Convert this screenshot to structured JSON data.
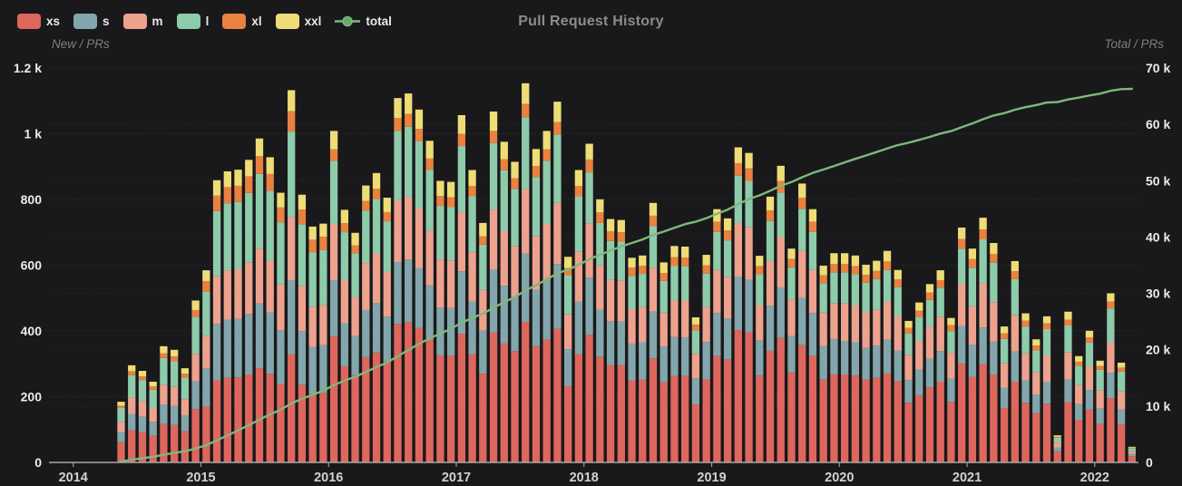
{
  "header": {
    "title": "Pull Request History"
  },
  "left_axis": {
    "name": "New / PRs",
    "min": 0,
    "max": 1200,
    "tick_values": [
      1200,
      1000,
      800,
      600,
      400,
      200,
      0
    ],
    "tick_labels": [
      "1.2 k",
      "1 k",
      "800",
      "600",
      "400",
      "200",
      "0"
    ]
  },
  "right_axis": {
    "name": "Total / PRs",
    "min": 0,
    "max": 70000,
    "tick_values": [
      70000,
      60000,
      50000,
      40000,
      30000,
      20000,
      10000,
      0
    ],
    "tick_labels": [
      "70 k",
      "60 k",
      "50 k",
      "40 k",
      "30 k",
      "20 k",
      "10 k",
      "0"
    ]
  },
  "x_axis": {
    "years": [
      "2014",
      "2015",
      "2016",
      "2017",
      "2018",
      "2019",
      "2020",
      "2021",
      "2022"
    ]
  },
  "legend": {
    "items": [
      {
        "label": "xs",
        "color": "#dd675d",
        "type": "swatch"
      },
      {
        "label": "s",
        "color": "#82a6ac",
        "type": "swatch"
      },
      {
        "label": "m",
        "color": "#eda28e",
        "type": "swatch"
      },
      {
        "label": "l",
        "color": "#8ecbab",
        "type": "swatch"
      },
      {
        "label": "xl",
        "color": "#e9813f",
        "type": "swatch"
      },
      {
        "label": "xxl",
        "color": "#eedc76",
        "type": "swatch"
      },
      {
        "label": "total",
        "color": "#7eb87c",
        "type": "line"
      }
    ]
  },
  "chart_data": {
    "type": "bar",
    "stacked": true,
    "title": "Pull Request History",
    "x_interval": "month",
    "grid": "dotted-horizontal-both-axes",
    "legend_position": "top-left",
    "left_ylim": [
      0,
      1200
    ],
    "right_ylim": [
      0,
      70000
    ],
    "categories": [
      "2014-05",
      "2014-06",
      "2014-07",
      "2014-08",
      "2014-09",
      "2014-10",
      "2014-11",
      "2014-12",
      "2015-01",
      "2015-02",
      "2015-03",
      "2015-04",
      "2015-05",
      "2015-06",
      "2015-07",
      "2015-08",
      "2015-09",
      "2015-10",
      "2015-11",
      "2015-12",
      "2016-01",
      "2016-02",
      "2016-03",
      "2016-04",
      "2016-05",
      "2016-06",
      "2016-07",
      "2016-08",
      "2016-09",
      "2016-10",
      "2016-11",
      "2016-12",
      "2017-01",
      "2017-02",
      "2017-03",
      "2017-04",
      "2017-05",
      "2017-06",
      "2017-07",
      "2017-08",
      "2017-09",
      "2017-10",
      "2017-11",
      "2017-12",
      "2018-01",
      "2018-02",
      "2018-03",
      "2018-04",
      "2018-05",
      "2018-06",
      "2018-07",
      "2018-08",
      "2018-09",
      "2018-10",
      "2018-11",
      "2018-12",
      "2019-01",
      "2019-02",
      "2019-03",
      "2019-04",
      "2019-05",
      "2019-06",
      "2019-07",
      "2019-08",
      "2019-09",
      "2019-10",
      "2019-11",
      "2019-12",
      "2020-01",
      "2020-02",
      "2020-03",
      "2020-04",
      "2020-05",
      "2020-06",
      "2020-07",
      "2020-08",
      "2020-09",
      "2020-10",
      "2020-11",
      "2020-12",
      "2021-01",
      "2021-02",
      "2021-03",
      "2021-04",
      "2021-05",
      "2021-06",
      "2021-07",
      "2021-08",
      "2021-09",
      "2021-10",
      "2021-11",
      "2021-12",
      "2022-01",
      "2022-02",
      "2022-03",
      "2022-04"
    ],
    "series": [
      {
        "name": "xs",
        "color": "#dd675d",
        "values": [
          61,
          97,
          92,
          81,
          116,
          113,
          94,
          162,
          169,
          249,
          257,
          258,
          267,
          286,
          269,
          238,
          328,
          236,
          208,
          211,
          383,
          292,
          265,
          320,
          334,
          306,
          421,
          426,
          408,
          372,
          325,
          324,
          391,
          329,
          269,
          395,
          361,
          338,
          427,
          353,
          373,
          406,
          231,
          329,
          388,
          320,
          296,
          295,
          249,
          252,
          316,
          243,
          263,
          262,
          176,
          252,
          323,
          312,
          402,
          395,
          264,
          339,
          379,
          273,
          356,
          323,
          251,
          267,
          267,
          264,
          252,
          257,
          270,
          246,
          181,
          204,
          228,
          245,
          184,
          300,
          260,
          298,
          267,
          165,
          245,
          181,
          150,
          178,
          33,
          183,
          129,
          160,
          117,
          195,
          115,
          18
        ]
      },
      {
        "name": "s",
        "color": "#82a6ac",
        "values": [
          31,
          50,
          47,
          42,
          60,
          58,
          49,
          84,
          117,
          172,
          177,
          178,
          184,
          197,
          186,
          164,
          226,
          163,
          143,
          145,
          171,
          131,
          119,
          143,
          150,
          137,
          188,
          191,
          182,
          166,
          146,
          145,
          190,
          160,
          131,
          192,
          176,
          165,
          208,
          172,
          181,
          197,
          113,
          160,
          174,
          144,
          133,
          133,
          112,
          113,
          142,
          109,
          118,
          118,
          79,
          114,
          131,
          126,
          163,
          160,
          107,
          137,
          153,
          111,
          144,
          131,
          102,
          108,
          102,
          101,
          96,
          98,
          103,
          94,
          69,
          78,
          87,
          93,
          70,
          114,
          98,
          112,
          100,
          62,
          92,
          68,
          56,
          67,
          12,
          69,
          48,
          60,
          46,
          77,
          45,
          7
        ]
      },
      {
        "name": "m",
        "color": "#eda28e",
        "values": [
          31,
          50,
          47,
          42,
          60,
          58,
          49,
          84,
          99,
          146,
          150,
          151,
          156,
          167,
          158,
          139,
          192,
          138,
          122,
          123,
          171,
          131,
          119,
          143,
          150,
          137,
          188,
          191,
          182,
          166,
          146,
          145,
          180,
          151,
          124,
          181,
          166,
          155,
          196,
          162,
          171,
          186,
          106,
          151,
          165,
          136,
          126,
          125,
          106,
          107,
          134,
          103,
          112,
          112,
          75,
          107,
          131,
          126,
          163,
          160,
          107,
          137,
          153,
          111,
          144,
          131,
          102,
          108,
          114,
          113,
          108,
          110,
          116,
          105,
          77,
          87,
          98,
          105,
          79,
          129,
          117,
          134,
          120,
          74,
          110,
          82,
          67,
          80,
          15,
          82,
          58,
          72,
          56,
          93,
          55,
          8
        ]
      },
      {
        "name": "l",
        "color": "#8ecbab",
        "values": [
          42,
          68,
          64,
          56,
          81,
          79,
          66,
          113,
          134,
          197,
          204,
          205,
          212,
          227,
          213,
          189,
          260,
          187,
          165,
          167,
          192,
          146,
          133,
          160,
          167,
          153,
          211,
          213,
          204,
          186,
          163,
          162,
          201,
          169,
          138,
          203,
          185,
          174,
          219,
          181,
          192,
          208,
          119,
          169,
          155,
          128,
          118,
          118,
          100,
          101,
          126,
          97,
          105,
          105,
          71,
          101,
          116,
          111,
          144,
          141,
          94,
          121,
          135,
          98,
          127,
          116,
          90,
          95,
          95,
          94,
          90,
          92,
          96,
          88,
          65,
          73,
          81,
          88,
          66,
          107,
          117,
          134,
          120,
          74,
          110,
          82,
          67,
          80,
          15,
          82,
          58,
          72,
          62,
          103,
          61,
          9
        ]
      },
      {
        "name": "xl",
        "color": "#e9813f",
        "values": [
          7,
          12,
          11,
          10,
          14,
          14,
          11,
          20,
          32,
          47,
          49,
          49,
          51,
          54,
          51,
          45,
          62,
          45,
          39,
          40,
          35,
          27,
          24,
          29,
          31,
          28,
          39,
          39,
          38,
          34,
          30,
          30,
          37,
          31,
          25,
          37,
          34,
          32,
          40,
          33,
          35,
          38,
          22,
          31,
          39,
          32,
          30,
          29,
          25,
          25,
          32,
          24,
          26,
          26,
          18,
          25,
          31,
          30,
          38,
          38,
          25,
          32,
          36,
          26,
          34,
          31,
          24,
          25,
          25,
          25,
          24,
          25,
          26,
          23,
          17,
          19,
          22,
          23,
          18,
          29,
          26,
          30,
          27,
          17,
          24,
          18,
          15,
          18,
          3,
          18,
          13,
          16,
          12,
          21,
          12,
          2
        ]
      },
      {
        "name": "xxl",
        "color": "#eedc76",
        "values": [
          12,
          18,
          17,
          14,
          22,
          20,
          17,
          29,
          33,
          47,
          48,
          49,
          50,
          54,
          51,
          45,
          64,
          45,
          40,
          40,
          56,
          41,
          38,
          47,
          48,
          44,
          61,
          62,
          59,
          54,
          46,
          47,
          57,
          49,
          41,
          59,
          53,
          50,
          63,
          52,
          56,
          62,
          34,
          49,
          48,
          40,
          37,
          37,
          30,
          31,
          39,
          32,
          34,
          33,
          22,
          32,
          38,
          37,
          48,
          47,
          31,
          42,
          46,
          31,
          43,
          38,
          29,
          33,
          33,
          32,
          31,
          31,
          32,
          29,
          21,
          25,
          26,
          30,
          22,
          35,
          32,
          36,
          33,
          21,
          31,
          22,
          19,
          21,
          4,
          24,
          17,
          20,
          16,
          25,
          15,
          3
        ]
      }
    ],
    "line_series": {
      "name": "total",
      "color": "#7eb87c",
      "axis": "right",
      "derivation": "cumulative sum of monthly stacked totals",
      "start_value": 184,
      "end_value": 66305
    }
  }
}
